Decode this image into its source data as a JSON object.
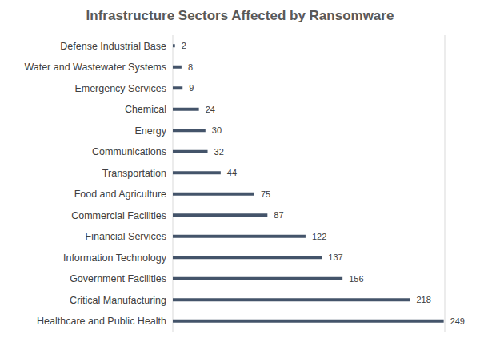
{
  "chart_data": {
    "type": "bar",
    "title": "Infrastructure Sectors Affected by Ransomware",
    "orientation": "horizontal",
    "categories": [
      "Defense Industrial Base",
      "Water and Wastewater Systems",
      "Emergency Services",
      "Chemical",
      "Energy",
      "Communications",
      "Transportation",
      "Food and Agriculture",
      "Commercial Facilities",
      "Financial Services",
      "Information Technology",
      "Government Facilities",
      "Critical Manufacturing",
      "Healthcare and Public Health"
    ],
    "values": [
      2,
      8,
      9,
      24,
      30,
      32,
      44,
      75,
      87,
      122,
      137,
      156,
      218,
      249
    ],
    "color": "#44546a",
    "xlim": [
      0,
      250
    ],
    "xticks": [
      0,
      50,
      100,
      150,
      200,
      250
    ],
    "grid": true,
    "data_labels": true,
    "tick_labels": "y"
  }
}
